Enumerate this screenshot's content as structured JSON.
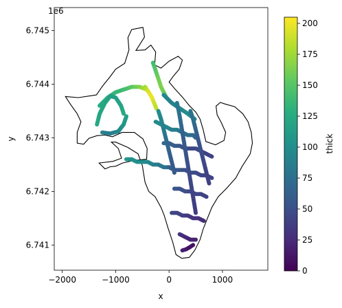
{
  "chart_data": {
    "type": "scatter",
    "title": "",
    "xlabel": "x",
    "ylabel": "y",
    "y_offset_label": "1e6",
    "xlim": [
      -2150,
      1850
    ],
    "ylim": [
      6740530,
      6745430
    ],
    "x_ticks": [
      -2000,
      -1000,
      0,
      1000
    ],
    "x_tick_labels": [
      "−2000",
      "−1000",
      "0",
      "1000"
    ],
    "y_ticks": [
      6741000,
      6742000,
      6743000,
      6744000,
      6745000
    ],
    "y_tick_labels": [
      "6.741",
      "6.742",
      "6.743",
      "6.744",
      "6.745"
    ],
    "grid": false,
    "colorbar": {
      "label": "thick",
      "colormap": "viridis",
      "range": [
        0,
        205
      ],
      "ticks": [
        0,
        25,
        50,
        75,
        100,
        125,
        150,
        175,
        200
      ],
      "tick_labels": [
        "0",
        "25",
        "50",
        "75",
        "100",
        "125",
        "150",
        "175",
        "200"
      ]
    },
    "outline": [
      [
        -1360,
        6743800
      ],
      [
        -1700,
        6743750
      ],
      [
        -1940,
        6743770
      ],
      [
        -1850,
        6743630
      ],
      [
        -1720,
        6743450
      ],
      [
        -1650,
        6743300
      ],
      [
        -1720,
        6743100
      ],
      [
        -1720,
        6742900
      ],
      [
        -1600,
        6742880
      ],
      [
        -1500,
        6742990
      ],
      [
        -1350,
        6743040
      ],
      [
        -1200,
        6743050
      ],
      [
        -1060,
        6743020
      ],
      [
        -880,
        6743100
      ],
      [
        -650,
        6743100
      ],
      [
        -490,
        6742980
      ],
      [
        -410,
        6742800
      ],
      [
        -420,
        6742600
      ],
      [
        -650,
        6742580
      ],
      [
        -870,
        6742530
      ],
      [
        -1000,
        6742470
      ],
      [
        -1100,
        6742460
      ],
      [
        -1200,
        6742420
      ],
      [
        -1310,
        6742530
      ],
      [
        -1050,
        6742560
      ],
      [
        -890,
        6742620
      ],
      [
        -950,
        6742800
      ],
      [
        -1080,
        6742920
      ],
      [
        -1000,
        6742920
      ],
      [
        -770,
        6742820
      ],
      [
        -580,
        6742700
      ],
      [
        -500,
        6742480
      ],
      [
        -450,
        6742170
      ],
      [
        -380,
        6742000
      ],
      [
        -260,
        6741900
      ],
      [
        -150,
        6741700
      ],
      [
        -90,
        6741550
      ],
      [
        -20,
        6741320
      ],
      [
        70,
        6741050
      ],
      [
        130,
        6740820
      ],
      [
        240,
        6740750
      ],
      [
        380,
        6740770
      ],
      [
        480,
        6740900
      ],
      [
        580,
        6741100
      ],
      [
        640,
        6741300
      ],
      [
        720,
        6741500
      ],
      [
        800,
        6741700
      ],
      [
        920,
        6741900
      ],
      [
        1080,
        6742060
      ],
      [
        1250,
        6742250
      ],
      [
        1370,
        6742470
      ],
      [
        1520,
        6742700
      ],
      [
        1560,
        6742900
      ],
      [
        1540,
        6743100
      ],
      [
        1480,
        6743300
      ],
      [
        1380,
        6743450
      ],
      [
        1230,
        6743580
      ],
      [
        1050,
        6743630
      ],
      [
        960,
        6743660
      ],
      [
        880,
        6743590
      ],
      [
        900,
        6743430
      ],
      [
        980,
        6743280
      ],
      [
        1060,
        6743100
      ],
      [
        1030,
        6742950
      ],
      [
        870,
        6742870
      ],
      [
        690,
        6742930
      ],
      [
        640,
        6743150
      ],
      [
        580,
        6743350
      ],
      [
        500,
        6743480
      ],
      [
        380,
        6743600
      ],
      [
        250,
        6743760
      ],
      [
        120,
        6743900
      ],
      [
        0,
        6744040
      ],
      [
        80,
        6744150
      ],
      [
        190,
        6744280
      ],
      [
        250,
        6744450
      ],
      [
        170,
        6744520
      ],
      [
        0,
        6744430
      ],
      [
        -150,
        6744300
      ],
      [
        -270,
        6744360
      ],
      [
        -250,
        6744600
      ],
      [
        -340,
        6744730
      ],
      [
        -450,
        6744640
      ],
      [
        -620,
        6744630
      ],
      [
        -460,
        6744880
      ],
      [
        -490,
        6745060
      ],
      [
        -700,
        6745020
      ],
      [
        -770,
        6744870
      ],
      [
        -750,
        6744640
      ],
      [
        -830,
        6744390
      ],
      [
        -1000,
        6744280
      ],
      [
        -1120,
        6744120
      ],
      [
        -1250,
        6743960
      ],
      [
        -1360,
        6743800
      ]
    ],
    "lines": [
      {
        "name": "",
        "x": [
          -1300,
          -1150,
          -1000,
          -850,
          -700,
          -550,
          -420
        ],
        "y": [
          6743600,
          6743750,
          6743850,
          6743900,
          6743950,
          6743950,
          6743900
        ],
        "thick": [
          125,
          130,
          135,
          140,
          150,
          165,
          185
        ]
      },
      {
        "name": "",
        "x": [
          -1350,
          -1300,
          -1200,
          -1100,
          -1000,
          -900,
          -850
        ],
        "y": [
          6743250,
          6743450,
          6743650,
          6743780,
          6743750,
          6743600,
          6743450
        ],
        "thick": [
          125,
          120,
          120,
          115,
          115,
          120,
          125
        ]
      },
      {
        "name": "",
        "x": [
          -1250,
          -1100,
          -950,
          -850,
          -800
        ],
        "y": [
          6743100,
          6743080,
          6743120,
          6743250,
          6743400
        ],
        "thick": [
          90,
          85,
          95,
          105,
          115
        ]
      },
      {
        "name": "",
        "x": [
          -300,
          -250,
          -200,
          -150,
          -100,
          -50
        ],
        "y": [
          6744400,
          6744250,
          6744100,
          6743950,
          6743850,
          6743750
        ],
        "thick": [
          140,
          150,
          160,
          165,
          160,
          150
        ]
      },
      {
        "name": "",
        "x": [
          -450,
          -380,
          -320,
          -280,
          -240
        ],
        "y": [
          6743950,
          6743850,
          6743750,
          6743650,
          6743550
        ],
        "thick": [
          175,
          195,
          200,
          190,
          185
        ]
      },
      {
        "name": "",
        "x": [
          -100,
          50,
          200,
          350,
          480
        ],
        "y": [
          6743800,
          6743650,
          6743550,
          6743450,
          6743350
        ],
        "thick": [
          95,
          90,
          95,
          100,
          95
        ]
      },
      {
        "name": "",
        "x": [
          -250,
          -150,
          -50,
          50,
          150,
          250,
          350,
          450,
          500
        ],
        "y": [
          6743300,
          6743250,
          6743200,
          6743150,
          6743150,
          6743100,
          6743050,
          6743050,
          6743000
        ],
        "thick": [
          95,
          100,
          95,
          90,
          85,
          80,
          75,
          70,
          70
        ]
      },
      {
        "name": "",
        "x": [
          -200,
          -150,
          -100,
          -50,
          0,
          50,
          100
        ],
        "y": [
          6743500,
          6743350,
          6743150,
          6742950,
          6742750,
          6742550,
          6742350
        ],
        "thick": [
          100,
          95,
          85,
          75,
          65,
          60,
          55
        ]
      },
      {
        "name": "",
        "x": [
          -100,
          0,
          100,
          200,
          300,
          400,
          500,
          600,
          700,
          800
        ],
        "y": [
          6742900,
          6742900,
          6742850,
          6742850,
          6742800,
          6742800,
          6742800,
          6742750,
          6742700,
          6742650
        ],
        "thick": [
          70,
          65,
          60,
          55,
          50,
          45,
          45,
          45,
          40,
          40
        ]
      },
      {
        "name": "",
        "x": [
          -800,
          -700,
          -600,
          -500,
          -400,
          -300,
          -200,
          -100,
          0
        ],
        "y": [
          6742600,
          6742600,
          6742550,
          6742550,
          6742550,
          6742500,
          6742500,
          6742450,
          6742450
        ],
        "thick": [
          110,
          105,
          100,
          100,
          95,
          90,
          85,
          80,
          70
        ]
      },
      {
        "name": "",
        "x": [
          0,
          100,
          200,
          300,
          400,
          500,
          600,
          700,
          800
        ],
        "y": [
          6742450,
          6742400,
          6742400,
          6742400,
          6742350,
          6742350,
          6742300,
          6742300,
          6742250
        ],
        "thick": [
          65,
          60,
          55,
          50,
          50,
          45,
          45,
          40,
          40
        ]
      },
      {
        "name": "",
        "x": [
          100,
          200,
          300,
          400,
          500,
          600,
          700
        ],
        "y": [
          6742050,
          6742050,
          6742000,
          6742000,
          6741950,
          6741950,
          6741900
        ],
        "thick": [
          55,
          50,
          50,
          45,
          45,
          40,
          40
        ]
      },
      {
        "name": "",
        "x": [
          50,
          150,
          250,
          350,
          450,
          550,
          650
        ],
        "y": [
          6741600,
          6741600,
          6741550,
          6741550,
          6741500,
          6741500,
          6741450
        ],
        "thick": [
          45,
          40,
          40,
          35,
          30,
          30,
          25
        ]
      },
      {
        "name": "",
        "x": [
          200,
          300,
          400,
          500
        ],
        "y": [
          6741200,
          6741150,
          6741100,
          6741100
        ],
        "thick": [
          30,
          25,
          20,
          20
        ]
      },
      {
        "name": "",
        "x": [
          250,
          320,
          390,
          450
        ],
        "y": [
          6740900,
          6740920,
          6740960,
          6741000
        ],
        "thick": [
          20,
          15,
          10,
          10
        ]
      },
      {
        "name": "",
        "x": [
          400,
          450,
          500,
          550,
          600,
          650,
          700,
          750
        ],
        "y": [
          6743500,
          6743350,
          6743150,
          6742950,
          6742750,
          6742550,
          6742350,
          6742150
        ],
        "thick": [
          80,
          75,
          65,
          55,
          50,
          45,
          40,
          40
        ]
      },
      {
        "name": "",
        "x": [
          150,
          200,
          250,
          300,
          350,
          400,
          450,
          500
        ],
        "y": [
          6743650,
          6743400,
          6743100,
          6742800,
          6742500,
          6742200,
          6741900,
          6741600
        ],
        "thick": [
          85,
          75,
          65,
          55,
          50,
          45,
          40,
          35
        ]
      }
    ]
  }
}
